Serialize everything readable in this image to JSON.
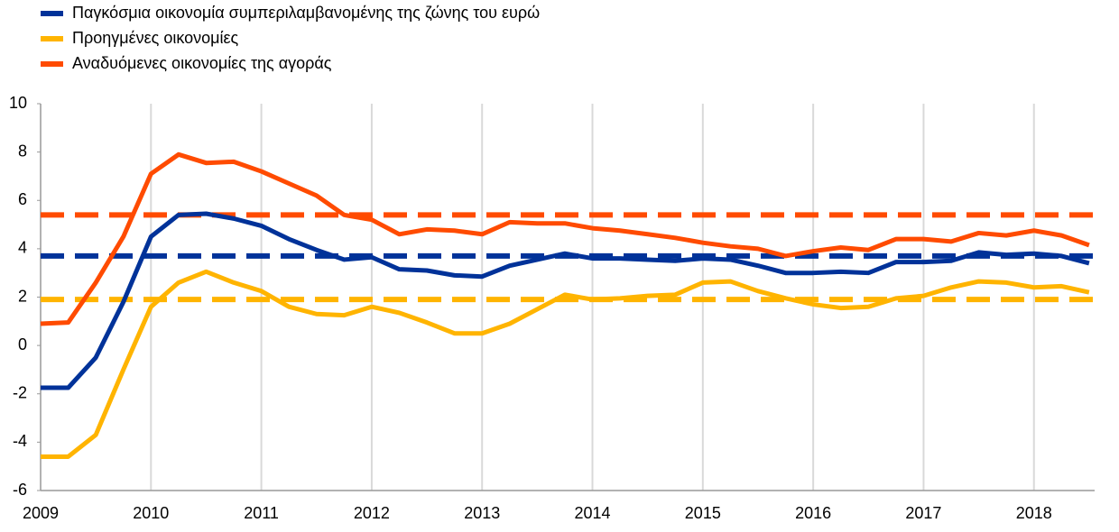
{
  "chart_data": {
    "type": "line",
    "x": [
      2009,
      2009.25,
      2009.5,
      2009.75,
      2010,
      2010.25,
      2010.5,
      2010.75,
      2011,
      2011.25,
      2011.5,
      2011.75,
      2012,
      2012.25,
      2012.5,
      2012.75,
      2013,
      2013.25,
      2013.5,
      2013.75,
      2014,
      2014.25,
      2014.5,
      2014.75,
      2015,
      2015.25,
      2015.5,
      2015.75,
      2016,
      2016.25,
      2016.5,
      2016.75,
      2017,
      2017.25,
      2017.5,
      2017.75,
      2018,
      2018.25,
      2018.5
    ],
    "series": [
      {
        "name": "Παγκόσμια οικονομία συμπεριλαμβανομένης της ζώνης του ευρώ",
        "color": "#003299",
        "average": 3.7,
        "values": [
          -1.75,
          -1.75,
          -0.5,
          1.8,
          4.5,
          5.4,
          5.45,
          5.25,
          4.95,
          4.4,
          3.95,
          3.55,
          3.65,
          3.15,
          3.1,
          2.9,
          2.85,
          3.3,
          3.55,
          3.8,
          3.6,
          3.6,
          3.55,
          3.5,
          3.6,
          3.55,
          3.3,
          3.0,
          3.0,
          3.05,
          3.0,
          3.45,
          3.45,
          3.5,
          3.85,
          3.75,
          3.8,
          3.7,
          3.4
        ]
      },
      {
        "name": "Προηγμένες οικονομίες",
        "color": "#ffb400",
        "average": 1.9,
        "values": [
          -4.6,
          -4.6,
          -3.7,
          -1.0,
          1.6,
          2.6,
          3.05,
          2.6,
          2.25,
          1.6,
          1.3,
          1.25,
          1.6,
          1.35,
          0.95,
          0.5,
          0.5,
          0.9,
          1.5,
          2.1,
          1.9,
          1.95,
          2.05,
          2.1,
          2.6,
          2.65,
          2.25,
          1.95,
          1.7,
          1.55,
          1.6,
          1.95,
          2.05,
          2.4,
          2.65,
          2.6,
          2.4,
          2.45,
          2.2
        ]
      },
      {
        "name": "Αναδυόμενες οικονομίες της αγοράς",
        "color": "#ff4b00",
        "average": 5.4,
        "values": [
          0.9,
          0.95,
          2.6,
          4.5,
          7.1,
          7.9,
          7.55,
          7.6,
          7.2,
          6.7,
          6.2,
          5.4,
          5.2,
          4.6,
          4.8,
          4.75,
          4.6,
          5.1,
          5.05,
          5.05,
          4.85,
          4.75,
          4.6,
          4.45,
          4.25,
          4.1,
          4.0,
          3.7,
          3.9,
          4.05,
          3.95,
          4.4,
          4.4,
          4.3,
          4.65,
          4.55,
          4.75,
          4.55,
          4.15
        ]
      }
    ],
    "xlim": [
      2009,
      2018.55
    ],
    "xticks": [
      2009,
      2010,
      2011,
      2012,
      2013,
      2014,
      2015,
      2016,
      2017,
      2018
    ],
    "ylim": [
      -6,
      10
    ],
    "yticks": [
      -6,
      -4,
      -2,
      0,
      2,
      4,
      6,
      8,
      10
    ],
    "grid": "x",
    "legend": "top-left"
  }
}
